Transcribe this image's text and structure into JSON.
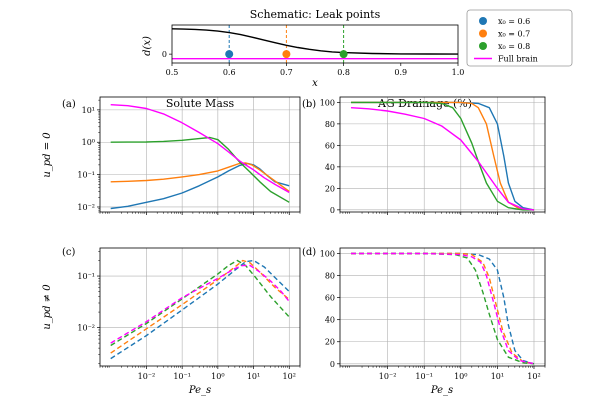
{
  "chart_data": [
    {
      "id": "schematic",
      "type": "line",
      "title": "Schematic: Leak points",
      "xlabel": "x",
      "ylabel": "d(x)",
      "xlim": [
        0.5,
        1.0
      ],
      "xticks": [
        0.5,
        0.6,
        0.7,
        0.8,
        0.9,
        1.0
      ],
      "xtick_labels": [
        "0.5",
        "0.6",
        "0.7",
        "0.8",
        "0.9",
        "1.0"
      ],
      "ylim": [
        -0.35,
        1.15
      ],
      "yticks": [
        0
      ],
      "ytick_labels": [
        "0"
      ],
      "curve": {
        "x": [
          0.5,
          0.52,
          0.54,
          0.56,
          0.58,
          0.6,
          0.62,
          0.64,
          0.66,
          0.68,
          0.7,
          0.72,
          0.74,
          0.76,
          0.78,
          0.8,
          0.85,
          0.9,
          0.95,
          1.0
        ],
        "y": [
          1.0,
          0.99,
          0.975,
          0.95,
          0.91,
          0.85,
          0.77,
          0.67,
          0.56,
          0.45,
          0.35,
          0.26,
          0.19,
          0.13,
          0.09,
          0.06,
          0.025,
          0.01,
          0.005,
          0.0
        ]
      },
      "leak_points": [
        {
          "name": "x0 = 0.6",
          "x": 0.6,
          "color": "#1f77b4"
        },
        {
          "name": "x0 = 0.7",
          "x": 0.7,
          "color": "#ff7f0e"
        },
        {
          "name": "x0 = 0.8",
          "x": 0.8,
          "color": "#2ca02c"
        }
      ],
      "full_brain_line": {
        "y": -0.18,
        "color": "#ff00ff"
      }
    },
    {
      "id": "legend",
      "entries": [
        {
          "label": "x₀ = 0.6",
          "color": "#1f77b4",
          "marker": "dot"
        },
        {
          "label": "x₀ = 0.7",
          "color": "#ff7f0e",
          "marker": "dot"
        },
        {
          "label": "x₀ = 0.8",
          "color": "#2ca02c",
          "marker": "dot"
        },
        {
          "label": "Full brain",
          "color": "#ff00ff",
          "marker": "line"
        }
      ],
      "placement": "top-right"
    },
    {
      "id": "a",
      "panel_label": "(a)",
      "type": "line",
      "title": "Solute Mass",
      "ylabel": "u_pd = 0",
      "xscale": "log",
      "yscale": "log",
      "xlim": [
        0.0005,
        200
      ],
      "ylim": [
        0.007,
        25
      ],
      "xticks": [
        0.01,
        0.1,
        1,
        10,
        100
      ],
      "yticks": [
        0.01,
        0.1,
        1,
        10
      ],
      "ytick_labels": [
        "10⁻²",
        "10⁻¹",
        "10⁰",
        "10¹"
      ],
      "grid": true,
      "series": [
        {
          "name": "x0 = 0.6",
          "color": "#1f77b4",
          "dash": "solid",
          "x": [
            0.001,
            0.003,
            0.01,
            0.03,
            0.1,
            0.3,
            1,
            2,
            4,
            7,
            10,
            15,
            25,
            40,
            100
          ],
          "y": [
            0.009,
            0.0105,
            0.014,
            0.018,
            0.027,
            0.045,
            0.085,
            0.13,
            0.19,
            0.22,
            0.2,
            0.15,
            0.09,
            0.06,
            0.045
          ]
        },
        {
          "name": "x0 = 0.7",
          "color": "#ff7f0e",
          "dash": "solid",
          "x": [
            0.001,
            0.003,
            0.01,
            0.03,
            0.1,
            0.3,
            1,
            2,
            4,
            6,
            9,
            15,
            30,
            100
          ],
          "y": [
            0.06,
            0.062,
            0.066,
            0.072,
            0.085,
            0.1,
            0.13,
            0.17,
            0.22,
            0.23,
            0.2,
            0.14,
            0.08,
            0.03
          ]
        },
        {
          "name": "x0 = 0.8",
          "color": "#2ca02c",
          "dash": "solid",
          "x": [
            0.001,
            0.003,
            0.01,
            0.03,
            0.1,
            0.3,
            0.6,
            1,
            2,
            4,
            8,
            15,
            30,
            100
          ],
          "y": [
            1.0,
            1.01,
            1.02,
            1.06,
            1.15,
            1.3,
            1.4,
            1.2,
            0.6,
            0.25,
            0.12,
            0.06,
            0.03,
            0.014
          ]
        },
        {
          "name": "Full brain",
          "color": "#ff00ff",
          "dash": "solid",
          "x": [
            0.001,
            0.003,
            0.01,
            0.03,
            0.1,
            0.3,
            1,
            2,
            4,
            6,
            10,
            20,
            40,
            100
          ],
          "y": [
            14.5,
            13.5,
            11,
            7.5,
            4,
            2,
            0.9,
            0.5,
            0.27,
            0.2,
            0.14,
            0.08,
            0.05,
            0.028
          ]
        }
      ]
    },
    {
      "id": "b",
      "panel_label": "(b)",
      "type": "line",
      "title": "AG Drainage (%)",
      "xscale": "log",
      "yscale": "linear",
      "xlim": [
        0.0005,
        200
      ],
      "ylim": [
        -2,
        105
      ],
      "xticks": [
        0.01,
        0.1,
        1,
        10,
        100
      ],
      "yticks": [
        0,
        20,
        40,
        60,
        80,
        100
      ],
      "ytick_labels": [
        "0",
        "20",
        "40",
        "60",
        "80",
        "100"
      ],
      "grid": true,
      "series": [
        {
          "name": "x0 = 0.6",
          "color": "#1f77b4",
          "dash": "solid",
          "x": [
            0.001,
            0.1,
            1,
            3,
            6,
            10,
            15,
            20,
            30,
            50,
            100
          ],
          "y": [
            100,
            100,
            100,
            99,
            95,
            80,
            50,
            25,
            8,
            2,
            0
          ]
        },
        {
          "name": "x0 = 0.7",
          "color": "#ff7f0e",
          "dash": "solid",
          "x": [
            0.001,
            0.1,
            1,
            2,
            3,
            5,
            8,
            12,
            20,
            40,
            100
          ],
          "y": [
            100,
            100,
            100,
            99,
            95,
            80,
            50,
            25,
            7,
            1,
            0
          ]
        },
        {
          "name": "x0 = 0.8",
          "color": "#2ca02c",
          "dash": "solid",
          "x": [
            0.001,
            0.1,
            0.3,
            0.6,
            1,
            2,
            3,
            5,
            10,
            20,
            50,
            100
          ],
          "y": [
            100,
            100,
            99,
            95,
            85,
            62,
            45,
            25,
            8,
            2,
            0,
            0
          ]
        },
        {
          "name": "Full brain",
          "color": "#ff00ff",
          "dash": "solid",
          "x": [
            0.001,
            0.003,
            0.01,
            0.03,
            0.1,
            0.3,
            1,
            3,
            10,
            20,
            50,
            100
          ],
          "y": [
            95,
            94,
            92,
            89,
            85,
            78,
            65,
            45,
            20,
            7,
            1,
            0
          ]
        }
      ]
    },
    {
      "id": "c",
      "panel_label": "(c)",
      "type": "line",
      "ylabel": "u_pd ≠ 0",
      "xlabel": "Pe_s",
      "xscale": "log",
      "yscale": "log",
      "xlim": [
        0.0005,
        200
      ],
      "ylim": [
        0.0018,
        0.35
      ],
      "xticks": [
        0.01,
        0.1,
        1,
        10,
        100
      ],
      "xtick_labels": [
        "10⁻²",
        "10⁻¹",
        "10⁰",
        "10¹",
        "10²"
      ],
      "yticks": [
        0.01,
        0.1
      ],
      "ytick_labels": [
        "10⁻²",
        "10⁻¹"
      ],
      "grid": true,
      "series": [
        {
          "name": "x0 = 0.6",
          "color": "#1f77b4",
          "dash": "dashed",
          "x": [
            0.001,
            0.01,
            0.1,
            1,
            3,
            6,
            10,
            20,
            50,
            100
          ],
          "y": [
            0.0025,
            0.007,
            0.022,
            0.07,
            0.13,
            0.19,
            0.2,
            0.15,
            0.08,
            0.05
          ]
        },
        {
          "name": "x0 = 0.7",
          "color": "#ff7f0e",
          "dash": "dashed",
          "x": [
            0.001,
            0.01,
            0.1,
            1,
            3,
            5,
            8,
            15,
            40,
            100
          ],
          "y": [
            0.0032,
            0.0095,
            0.028,
            0.085,
            0.15,
            0.2,
            0.18,
            0.12,
            0.06,
            0.035
          ]
        },
        {
          "name": "x0 = 0.8",
          "color": "#2ca02c",
          "dash": "dashed",
          "x": [
            0.001,
            0.01,
            0.1,
            1,
            2,
            3.5,
            6,
            12,
            30,
            100
          ],
          "y": [
            0.0045,
            0.012,
            0.036,
            0.11,
            0.16,
            0.2,
            0.16,
            0.09,
            0.04,
            0.016
          ]
        },
        {
          "name": "Full brain",
          "color": "#ff00ff",
          "dash": "dashed",
          "x": [
            0.001,
            0.01,
            0.1,
            1,
            3,
            5,
            8,
            15,
            30,
            60,
            100
          ],
          "y": [
            0.005,
            0.013,
            0.038,
            0.09,
            0.14,
            0.16,
            0.16,
            0.12,
            0.08,
            0.05,
            0.032
          ]
        }
      ]
    },
    {
      "id": "d",
      "panel_label": "(d)",
      "type": "line",
      "xlabel": "Pe_s",
      "xscale": "log",
      "yscale": "linear",
      "xlim": [
        0.0005,
        200
      ],
      "ylim": [
        -2,
        105
      ],
      "xticks": [
        0.01,
        0.1,
        1,
        10,
        100
      ],
      "xtick_labels": [
        "10⁻²",
        "10⁻¹",
        "10⁰",
        "10¹",
        "10²"
      ],
      "yticks": [
        0,
        20,
        40,
        60,
        80,
        100
      ],
      "ytick_labels": [
        "0",
        "20",
        "40",
        "60",
        "80",
        "100"
      ],
      "grid": true,
      "series": [
        {
          "name": "x0 = 0.6",
          "color": "#1f77b4",
          "dash": "dashed",
          "x": [
            0.001,
            0.1,
            1,
            3,
            6,
            10,
            15,
            20,
            30,
            50,
            100
          ],
          "y": [
            100,
            100,
            100,
            99,
            95,
            85,
            60,
            35,
            12,
            3,
            0
          ]
        },
        {
          "name": "x0 = 0.7",
          "color": "#ff7f0e",
          "dash": "dashed",
          "x": [
            0.001,
            0.1,
            1,
            2,
            4,
            6,
            9,
            14,
            25,
            50,
            100
          ],
          "y": [
            100,
            100,
            100,
            99,
            92,
            78,
            55,
            30,
            10,
            2,
            0
          ]
        },
        {
          "name": "x0 = 0.8",
          "color": "#2ca02c",
          "dash": "dashed",
          "x": [
            0.001,
            0.1,
            0.7,
            1.5,
            2.5,
            4,
            6,
            10,
            20,
            50,
            100
          ],
          "y": [
            100,
            100,
            99,
            96,
            85,
            65,
            45,
            22,
            6,
            1,
            0
          ]
        },
        {
          "name": "Full brain",
          "color": "#ff00ff",
          "dash": "dashed",
          "x": [
            0.001,
            0.1,
            1,
            2,
            3.5,
            5,
            8,
            12,
            20,
            40,
            100
          ],
          "y": [
            100,
            100,
            99,
            97,
            92,
            80,
            55,
            32,
            12,
            3,
            0
          ]
        }
      ]
    }
  ]
}
